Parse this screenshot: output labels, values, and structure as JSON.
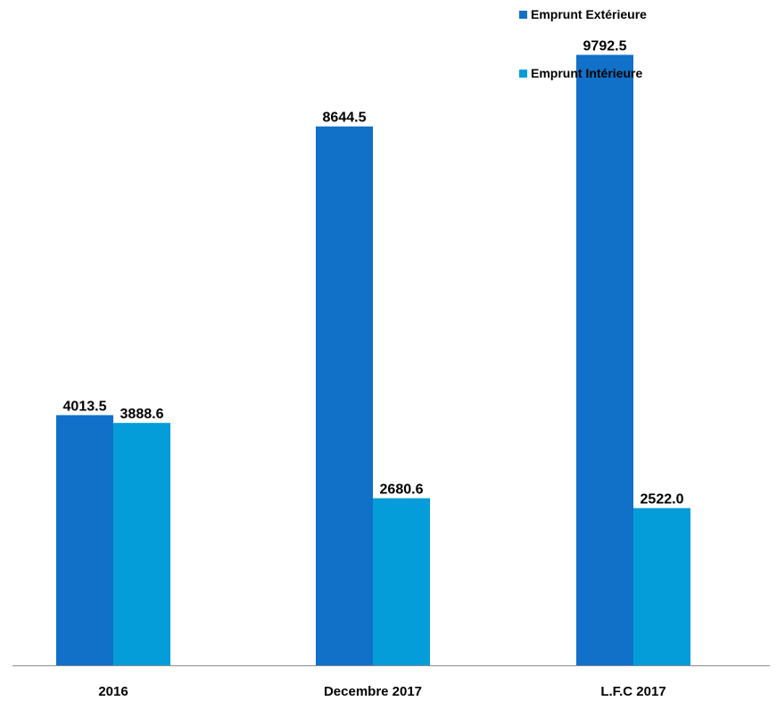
{
  "chart_data": {
    "type": "bar",
    "title": "",
    "xlabel": "",
    "ylabel": "",
    "ylim": [
      0,
      10000
    ],
    "grid": false,
    "legend_position": "top-right",
    "categories": [
      "2016",
      "Decembre 2017",
      "L.F.C 2017"
    ],
    "series": [
      {
        "name": "Emprunt Extérieure",
        "color": "#1170C8",
        "values": [
          4013.5,
          8644.5,
          9792.5
        ],
        "labels": [
          "4013.5",
          "8644.5",
          "9792.5"
        ]
      },
      {
        "name": "Emprunt Intérieure",
        "color": "#049DD9",
        "values": [
          3888.6,
          2680.6,
          2522.0
        ],
        "labels": [
          "3888.6",
          "2680.6",
          "2522.0"
        ]
      }
    ]
  }
}
